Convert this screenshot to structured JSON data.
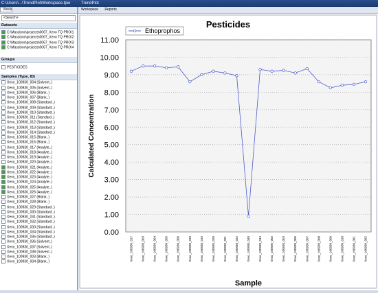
{
  "window": {
    "title": "C:\\Users\\...\\TrendPlot\\Workspace.tpw",
    "app": "TrendPlot"
  },
  "left_panel": {
    "views": "Views",
    "search": "<Search>",
    "datasets_header": "Datasets",
    "datasets": [
      "C:\\Masslynx\\projects\\0067_Xevo TQ PRO\\1",
      "C:\\Masslynx\\projects\\0067_Xevo TQ PRO\\2",
      "C:\\Masslynx\\projects\\0067_Xevo TQ PRO\\3",
      "C:\\Masslynx\\projects\\0067_Xevo TQ PRO\\4"
    ],
    "groups_header": "Groups",
    "groups": [
      "PESTICIDES"
    ],
    "samples_header": "Samples (Type, ID)",
    "samples": [
      {
        "label": "Xevo_100930_004 (Solvent..)",
        "checked": false
      },
      {
        "label": "Xevo_100930_005 (Solvent..)",
        "checked": false
      },
      {
        "label": "Xevo_100930_006 (Blank..)",
        "checked": false
      },
      {
        "label": "Xevo_100930_007 (Blank..)",
        "checked": false
      },
      {
        "label": "Xevo_100930_008 (Standard..)",
        "checked": false
      },
      {
        "label": "Xevo_100930_009 (Standard..)",
        "checked": false
      },
      {
        "label": "Xevo_100930_010 (Standard..)",
        "checked": false
      },
      {
        "label": "Xevo_100930_011 (Standard..)",
        "checked": false
      },
      {
        "label": "Xevo_100930_012 (Standard..)",
        "checked": false
      },
      {
        "label": "Xevo_100930_013 (Standard..)",
        "checked": false
      },
      {
        "label": "Xevo_100930_014 (Standard..)",
        "checked": false
      },
      {
        "label": "Xevo_100930_015 (Blank..)",
        "checked": false
      },
      {
        "label": "Xevo_100930_016 (Blank..)",
        "checked": false
      },
      {
        "label": "Xevo_100930_017 (Analyte..)",
        "checked": false
      },
      {
        "label": "Xevo_100930_018 (Analyte..)",
        "checked": false
      },
      {
        "label": "Xevo_100930_019 (Analyte..)",
        "checked": false
      },
      {
        "label": "Xevo_100930_020 (Analyte..)",
        "checked": false
      },
      {
        "label": "Xevo_100930_021 (Analyte..)",
        "checked": true
      },
      {
        "label": "Xevo_100930_022 (Analyte..)",
        "checked": true
      },
      {
        "label": "Xevo_100930_023 (Analyte..)",
        "checked": true
      },
      {
        "label": "Xevo_100930_024 (Analyte..)",
        "checked": true
      },
      {
        "label": "Xevo_100930_025 (Analyte..)",
        "checked": true
      },
      {
        "label": "Xevo_100930_026 (Analyte..)",
        "checked": true
      },
      {
        "label": "Xevo_100930_027 (Blank..)",
        "checked": false
      },
      {
        "label": "Xevo_100930_028 (Blank..)",
        "checked": false
      },
      {
        "label": "Xevo_100930_029 (Standard..)",
        "checked": false
      },
      {
        "label": "Xevo_100930_030 (Standard..)",
        "checked": false
      },
      {
        "label": "Xevo_100930_031 (Standard..)",
        "checked": false
      },
      {
        "label": "Xevo_100930_032 (Standard..)",
        "checked": false
      },
      {
        "label": "Xevo_100930_033 (Standard..)",
        "checked": false
      },
      {
        "label": "Xevo_100930_034 (Standard..)",
        "checked": false
      },
      {
        "label": "Xevo_100930_035 (Standard..)",
        "checked": false
      },
      {
        "label": "Xevo_100930_036 (Solvent..)",
        "checked": false
      },
      {
        "label": "Xevo_100930_037 (Solvent..)",
        "checked": false
      },
      {
        "label": "Xevo_100930_038 (Solvent..)",
        "checked": false
      },
      {
        "label": "Xevo_100930_003 (Blank..)",
        "checked": false
      },
      {
        "label": "Xevo_100930_004 (Blank..)",
        "checked": false
      }
    ]
  },
  "toolbar": {
    "workspace": "Workspace",
    "reports": "Reports"
  },
  "chart_data": {
    "type": "line",
    "title": "Pesticides",
    "x_label": "Sample",
    "y_label": "Calculated Concentration",
    "categories": [
      "Xevo_100930_017",
      "Xevo_100930_003",
      "Xevo_100930_004",
      "Xevo_100930_005",
      "Xevo_100930_006",
      "Xevo_100930_018",
      "Xevo_100930_019",
      "Xevo_100930_020",
      "Xevo_100930_021",
      "Xevo_100930_022",
      "Xevo_100930_048",
      "Xevo_100930_044",
      "Xevo_100930_002",
      "Xevo_100930_003",
      "Xevo_100930_006",
      "Xevo_100930_007",
      "Xevo_100930_008",
      "Xevo_100930_009",
      "Xevo_100930_010",
      "Xevo_100930_061",
      "Xevo_100930_062"
    ],
    "series": [
      {
        "name": "Ethoprophos",
        "color": "#4a5ccc",
        "values": [
          9.2,
          9.5,
          9.5,
          9.4,
          9.45,
          8.6,
          9.0,
          9.2,
          9.1,
          8.95,
          0.9,
          9.3,
          9.2,
          9.25,
          9.1,
          9.35,
          8.6,
          8.25,
          8.4,
          8.45,
          8.6
        ]
      }
    ],
    "ylim": [
      0,
      11
    ],
    "yticks": [
      {
        "value": 0,
        "label": "0.00"
      },
      {
        "value": 1,
        "label": "1.00"
      },
      {
        "value": 2,
        "label": "2.00"
      },
      {
        "value": 3,
        "label": "3.00"
      },
      {
        "value": 4,
        "label": "4.00"
      },
      {
        "value": 5,
        "label": "5.00"
      },
      {
        "value": 6,
        "label": "6.00"
      },
      {
        "value": 7,
        "label": "7.00"
      },
      {
        "value": 8,
        "label": "8.00"
      },
      {
        "value": 9,
        "label": "9.00"
      },
      {
        "value": 10,
        "label": "10.00"
      },
      {
        "value": 11,
        "label": "11.00"
      }
    ],
    "grid": true,
    "legend": "top-left"
  }
}
